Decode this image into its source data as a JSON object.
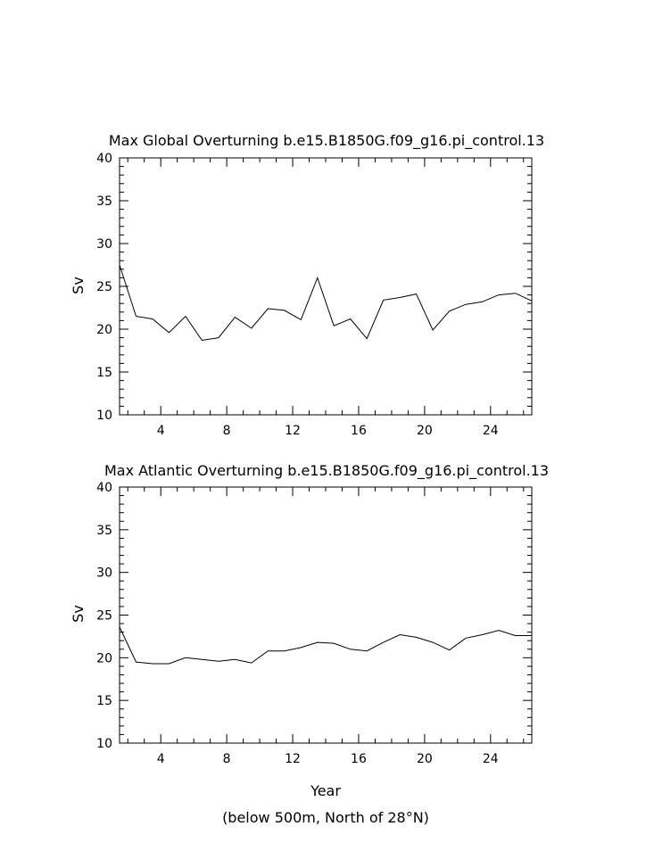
{
  "chart_data": [
    {
      "type": "line",
      "title": "Max Global Overturning b.e15.B1850G.f09_g16.pi_control.13",
      "ylabel": "Sv",
      "xlabel": "",
      "xlim": [
        1.5,
        26.5
      ],
      "ylim": [
        10,
        40
      ],
      "xticks": [
        4,
        8,
        12,
        16,
        20,
        24
      ],
      "yticks": [
        10,
        15,
        20,
        25,
        30,
        35,
        40
      ],
      "grid": false,
      "series": [
        {
          "x": [
            1.5,
            2.5,
            3.5,
            4.5,
            5.5,
            6.5,
            7.5,
            8.5,
            9.5,
            10.5,
            11.5,
            12.5,
            13.5,
            14.5,
            15.5,
            16.5,
            17.5,
            18.5,
            19.5,
            20.5,
            21.5,
            22.5,
            23.5,
            24.5,
            25.5,
            26.5
          ],
          "values": [
            27.5,
            21.5,
            21.2,
            19.6,
            21.5,
            18.7,
            19.0,
            21.4,
            20.1,
            22.4,
            22.2,
            21.1,
            26.0,
            20.4,
            21.2,
            18.9,
            23.4,
            23.7,
            24.1,
            19.9,
            22.1,
            22.9,
            23.2,
            24.0,
            24.2,
            23.3
          ]
        }
      ]
    },
    {
      "type": "line",
      "title": "Max Atlantic Overturning b.e15.B1850G.f09_g16.pi_control.13",
      "ylabel": "Sv",
      "xlabel": "Year",
      "xlim": [
        1.5,
        26.5
      ],
      "ylim": [
        10,
        40
      ],
      "xticks": [
        4,
        8,
        12,
        16,
        20,
        24
      ],
      "yticks": [
        10,
        15,
        20,
        25,
        30,
        35,
        40
      ],
      "grid": false,
      "series": [
        {
          "x": [
            1.5,
            2.5,
            3.5,
            4.5,
            5.5,
            6.5,
            7.5,
            8.5,
            9.5,
            10.5,
            11.5,
            12.5,
            13.5,
            14.5,
            15.5,
            16.5,
            17.5,
            18.5,
            19.5,
            20.5,
            21.5,
            22.5,
            23.5,
            24.5,
            25.5,
            26.5
          ],
          "values": [
            23.6,
            19.5,
            19.3,
            19.3,
            20.0,
            19.8,
            19.6,
            19.8,
            19.4,
            20.8,
            20.8,
            21.2,
            21.8,
            21.7,
            21.0,
            20.8,
            21.8,
            22.7,
            22.4,
            21.8,
            20.9,
            22.3,
            22.7,
            23.2,
            22.6,
            22.6
          ]
        }
      ]
    }
  ],
  "footnote": "(below 500m, North of 28°N)"
}
